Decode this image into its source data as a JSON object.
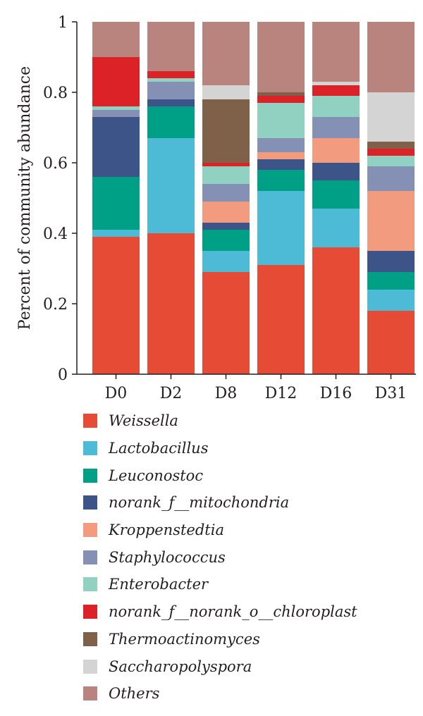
{
  "chart_data": {
    "type": "bar",
    "stacked": true,
    "ylabel": "Percent of community abundance",
    "xlabel": "",
    "ylim": [
      0,
      1
    ],
    "yticks": [
      "0",
      "0.2",
      "0.4",
      "0.6",
      "0.8",
      "1"
    ],
    "categories": [
      "D0",
      "D2",
      "D8",
      "D12",
      "D16",
      "D31"
    ],
    "legend_position": "bottom",
    "series": [
      {
        "name": "Weissella",
        "color": "#e54b35",
        "values": [
          0.39,
          0.4,
          0.29,
          0.31,
          0.36,
          0.18
        ]
      },
      {
        "name": "Lactobacillus",
        "color": "#4dbad6",
        "values": [
          0.02,
          0.27,
          0.06,
          0.21,
          0.11,
          0.06
        ]
      },
      {
        "name": "Leuconostoc",
        "color": "#00a087",
        "values": [
          0.15,
          0.09,
          0.06,
          0.06,
          0.08,
          0.05
        ]
      },
      {
        "name": "norank_f__mitochondria",
        "color": "#3c5488",
        "values": [
          0.17,
          0.02,
          0.02,
          0.03,
          0.05,
          0.06
        ]
      },
      {
        "name": "Kroppenstedtia",
        "color": "#f39b7f",
        "values": [
          0.0,
          0.0,
          0.06,
          0.02,
          0.07,
          0.17
        ]
      },
      {
        "name": "Staphylococcus",
        "color": "#8491b4",
        "values": [
          0.02,
          0.05,
          0.05,
          0.04,
          0.06,
          0.07
        ]
      },
      {
        "name": "Enterobacter",
        "color": "#91d1c2",
        "values": [
          0.01,
          0.01,
          0.05,
          0.1,
          0.06,
          0.03
        ]
      },
      {
        "name": "norank_f__norank_o__chloroplast",
        "color": "#dc2127",
        "values": [
          0.14,
          0.02,
          0.01,
          0.02,
          0.03,
          0.02
        ]
      },
      {
        "name": "Thermoactinomyces",
        "color": "#7e6148",
        "values": [
          0.0,
          0.0,
          0.18,
          0.01,
          0.0,
          0.02
        ]
      },
      {
        "name": "Saccharopolyspora",
        "color": "#d4d4d4",
        "values": [
          0.0,
          0.0,
          0.04,
          0.0,
          0.01,
          0.14
        ]
      },
      {
        "name": "Others",
        "color": "#b9847e",
        "values": [
          0.1,
          0.14,
          0.18,
          0.2,
          0.17,
          0.2
        ]
      }
    ]
  }
}
